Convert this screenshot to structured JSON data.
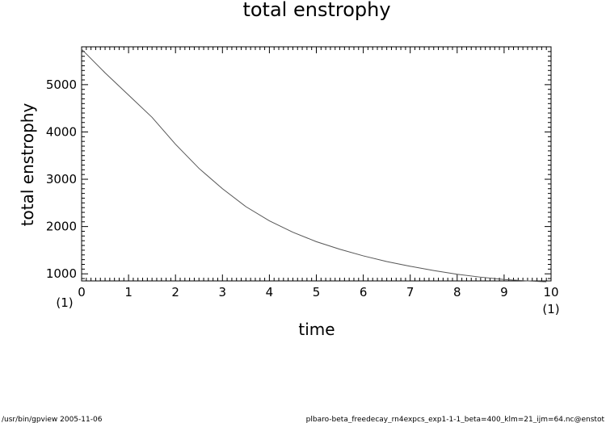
{
  "chart_data": {
    "type": "line",
    "title": "total enstrophy",
    "xlabel": "time",
    "ylabel": "total enstrophy",
    "xlim": [
      0,
      10
    ],
    "ylim": [
      850,
      5800
    ],
    "x_ticks": [
      0,
      1,
      2,
      3,
      4,
      5,
      6,
      7,
      8,
      9,
      10
    ],
    "y_ticks": [
      1000,
      2000,
      3000,
      4000,
      5000
    ],
    "x_unit_left": "(1)",
    "x_unit_right": "(1)",
    "grid": false,
    "series": [
      {
        "color": "#555555",
        "x": [
          0,
          0.5,
          1,
          1.5,
          2,
          2.5,
          3,
          3.5,
          4,
          4.5,
          5,
          5.5,
          6,
          6.5,
          7,
          7.5,
          8,
          8.5,
          9,
          9.5,
          9.9
        ],
        "y": [
          5750,
          5250,
          4780,
          4310,
          3740,
          3230,
          2800,
          2420,
          2120,
          1880,
          1680,
          1520,
          1380,
          1260,
          1160,
          1070,
          990,
          930,
          880,
          850,
          830
        ]
      }
    ]
  },
  "footer": {
    "left": "/usr/bin/gpview   2005-11-06",
    "right": "plbaro-beta_freedecay_rn4expcs_exp1-1-1_beta=400_klm=21_ijm=64.nc@enstot"
  }
}
